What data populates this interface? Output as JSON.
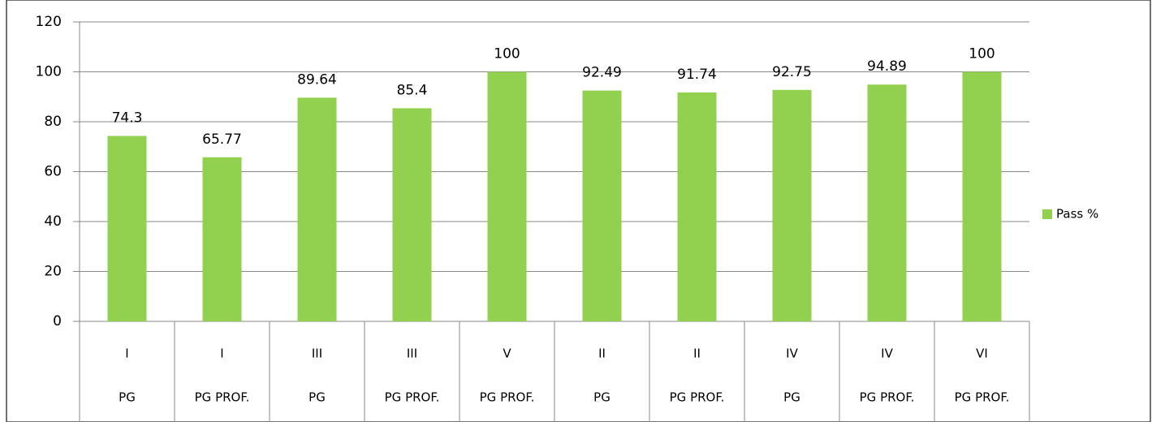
{
  "chart_data": {
    "type": "bar",
    "categories": [
      "I",
      "I",
      "III",
      "III",
      "V",
      "II",
      "II",
      "IV",
      "IV",
      "VI"
    ],
    "subcategories": [
      "PG",
      "PG PROF.",
      "PG",
      "PG PROF.",
      "PG PROF.",
      "PG",
      "PG PROF.",
      "PG",
      "PG PROF.",
      "PG PROF."
    ],
    "series": [
      {
        "name": "Pass %",
        "color": "#92d050",
        "values": [
          74.3,
          65.77,
          89.64,
          85.4,
          100,
          92.49,
          91.74,
          92.75,
          94.89,
          100
        ]
      }
    ],
    "ylim": [
      0,
      120
    ],
    "yticks": [
      0,
      20,
      40,
      60,
      80,
      100,
      120
    ],
    "grid": true,
    "legend": "right"
  }
}
